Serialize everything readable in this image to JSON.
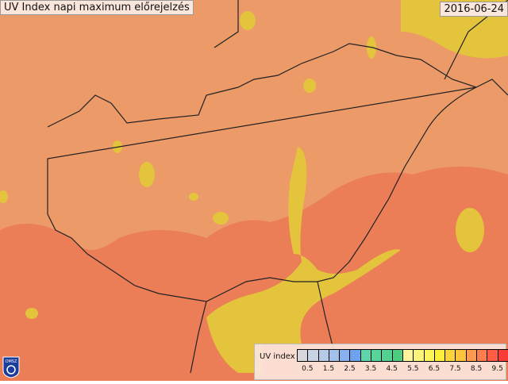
{
  "header": {
    "title": "UV Index napi maximum előrejelzés",
    "date": "2016-06-24"
  },
  "legend": {
    "label": "UV index",
    "colors": [
      "#d6d6dc",
      "#c8d2e2",
      "#b6cae6",
      "#a2c0ea",
      "#88b0ee",
      "#6ea2f0",
      "#5ed6aa",
      "#56d49c",
      "#52d090",
      "#4ecc80",
      "#fff49c",
      "#fff47a",
      "#fff45a",
      "#fff03c",
      "#ffd43a",
      "#ffc43c",
      "#ff9a50",
      "#ff7c4c",
      "#ff5c44",
      "#f83c38"
    ],
    "ticks": [
      "0.5",
      "1.5",
      "2.5",
      "3.5",
      "4.5",
      "5.5",
      "6.5",
      "7.5",
      "8.5",
      "9.5"
    ]
  },
  "logo": {
    "text": "OMSZ"
  },
  "map_colors": {
    "base": "#ec9a68",
    "high": "#eb7d57",
    "moderate": "#e4c43c",
    "border": "#222222"
  }
}
